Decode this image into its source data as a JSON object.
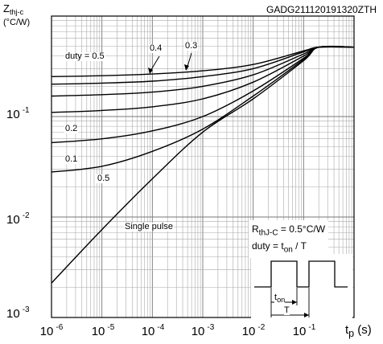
{
  "header": {
    "code": "GADG211120191320ZTH"
  },
  "chart_data": {
    "type": "line",
    "scale": {
      "x": "log",
      "y": "log"
    },
    "xlim": [
      1e-06,
      1
    ],
    "ylim": [
      0.001,
      1
    ],
    "grid": true,
    "ylabel_main": "Z",
    "ylabel_sub": "thj-c",
    "ylabel_unit": "(°C/W)",
    "xlabel_main": "t",
    "xlabel_sub": "p",
    "xlabel_unit": " (s)",
    "x_ticks": [
      {
        "base": "10",
        "exp": "-6"
      },
      {
        "base": "10",
        "exp": "-5"
      },
      {
        "base": "10",
        "exp": "-4"
      },
      {
        "base": "10",
        "exp": "-3"
      },
      {
        "base": "10",
        "exp": "-2"
      },
      {
        "base": "10",
        "exp": "-1"
      }
    ],
    "y_ticks": [
      {
        "base": "10",
        "exp": "-1"
      },
      {
        "base": "10",
        "exp": "-2"
      },
      {
        "base": "10",
        "exp": "-3"
      }
    ],
    "series": [
      {
        "name": "duty = 0.5",
        "x": [
          1e-06,
          1e-05,
          0.0001,
          0.001,
          0.01,
          0.1,
          0.2,
          1
        ],
        "y": [
          0.25,
          0.255,
          0.265,
          0.285,
          0.33,
          0.45,
          0.49,
          0.49
        ]
      },
      {
        "name": "0.4",
        "x": [
          1e-06,
          1e-05,
          0.0001,
          0.001,
          0.01,
          0.1,
          0.2,
          1
        ],
        "y": [
          0.21,
          0.215,
          0.225,
          0.25,
          0.3,
          0.44,
          0.49,
          0.49
        ]
      },
      {
        "name": "0.3",
        "x": [
          1e-06,
          1e-05,
          0.0001,
          0.001,
          0.01,
          0.1,
          0.2,
          1
        ],
        "y": [
          0.16,
          0.165,
          0.175,
          0.2,
          0.26,
          0.42,
          0.49,
          0.49
        ]
      },
      {
        "name": "0.2",
        "x": [
          1e-06,
          1e-05,
          0.0001,
          0.001,
          0.01,
          0.1,
          0.2,
          1
        ],
        "y": [
          0.11,
          0.115,
          0.125,
          0.15,
          0.22,
          0.4,
          0.49,
          0.49
        ]
      },
      {
        "name": "0.1",
        "x": [
          1e-06,
          1e-05,
          0.0001,
          0.001,
          0.01,
          0.1,
          0.2,
          1
        ],
        "y": [
          0.055,
          0.06,
          0.072,
          0.1,
          0.18,
          0.38,
          0.49,
          0.49
        ]
      },
      {
        "name": "0.5",
        "x": [
          1e-06,
          1e-05,
          0.0001,
          0.001,
          0.01,
          0.1,
          0.2,
          1
        ],
        "y": [
          0.028,
          0.032,
          0.045,
          0.075,
          0.16,
          0.37,
          0.49,
          0.49
        ]
      },
      {
        "name": "Single pulse",
        "x": [
          1e-06,
          1e-05,
          0.0001,
          0.001,
          0.01,
          0.1,
          0.2,
          1
        ],
        "y": [
          0.0022,
          0.0075,
          0.024,
          0.07,
          0.15,
          0.36,
          0.49,
          0.49
        ]
      }
    ],
    "annotations": {
      "rth_main": "R",
      "rth_sub": "thJ-C",
      "rth_value": " = 0.5°C/W",
      "duty_prefix": "duty = t",
      "duty_sub": "on",
      "duty_suffix": " / T",
      "pulse_ton_main": "t",
      "pulse_ton_sub": "on",
      "pulse_T": "T"
    }
  }
}
